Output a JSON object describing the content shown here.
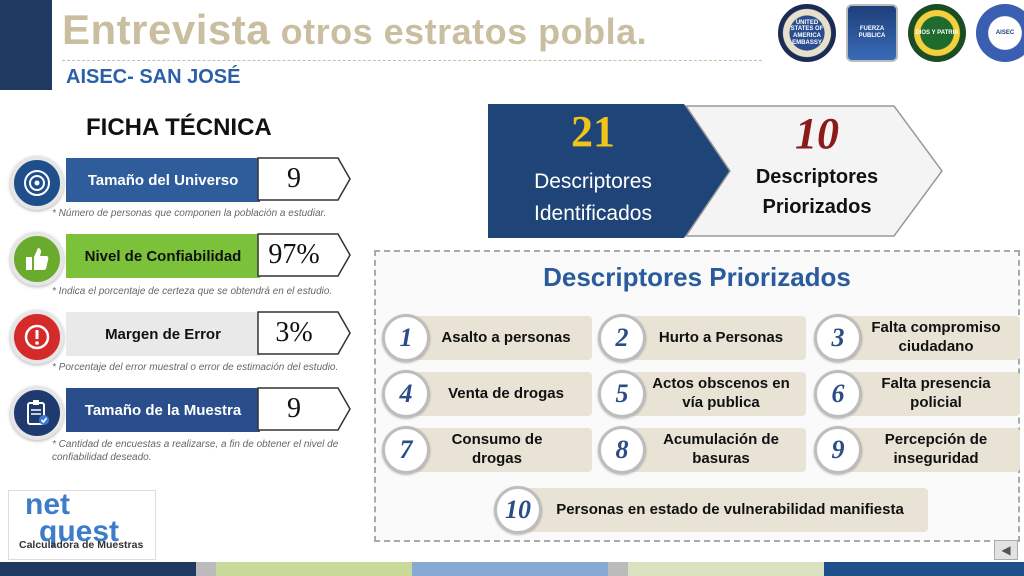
{
  "header": {
    "title_main": "Entrevista",
    "title_rest": " otros estratos pobla.",
    "subtitle": "AISEC- SAN JOSÉ"
  },
  "logos": [
    {
      "name": "us-embassy-seal",
      "text": "UNITED STATES OF AMERICA EMBASSY"
    },
    {
      "name": "fuerza-publica-shield",
      "text": "FUERZA PUBLICA"
    },
    {
      "name": "national-police-seal",
      "text": "DIOS Y PATRIA"
    },
    {
      "name": "aisec-seal",
      "text": "AISEC"
    }
  ],
  "ficha": {
    "title": "FICHA TÉCNICA",
    "params": [
      {
        "label": "Tamaño del Universo",
        "value": "9",
        "note": "* Número de personas que componen la población a estudiar.",
        "icon": "target-icon",
        "circle_color": "#1f4f8a",
        "label_bg": "#2f5d9c",
        "label_color": "#ffffff"
      },
      {
        "label": "Nivel de Confiabilidad",
        "value": "97%",
        "note": "* Indica el porcentaje de certeza que se obtendrá en el estudio.",
        "icon": "thumbs-up-icon",
        "circle_color": "#6aab2e",
        "label_bg": "#7cc13a",
        "label_color": "#111111"
      },
      {
        "label": "Margen de Error",
        "value": "3%",
        "note": "* Porcentaje del error muestral o error de estimación del estudio.",
        "icon": "alert-icon",
        "circle_color": "#d42a2a",
        "label_bg": "#e9e9e9",
        "label_color": "#111111"
      },
      {
        "label": "Tamaño de la Muestra",
        "value": "9",
        "note": "* Cantidad de encuestas a realizarse, a fin de obtener el nivel de confiabilidad deseado.",
        "icon": "clipboard-check-icon",
        "circle_color": "#1f3a6e",
        "label_bg": "#2a4e8c",
        "label_color": "#ffffff"
      }
    ]
  },
  "netquest": {
    "logo_line1": "net",
    "logo_line2": "quest",
    "caption": "Calculadora de Muestras"
  },
  "counts": {
    "identified": {
      "number": "21",
      "label_line1": "Descriptores",
      "label_line2": "Identificados"
    },
    "prioritized": {
      "number": "10",
      "label_line1": "Descriptores",
      "label_line2": "Priorizados"
    }
  },
  "prioritized": {
    "title": "Descriptores Priorizados",
    "items": [
      {
        "num": "1",
        "label": "Asalto a personas"
      },
      {
        "num": "2",
        "label": "Hurto a Personas"
      },
      {
        "num": "3",
        "label": "Falta compromiso ciudadano"
      },
      {
        "num": "4",
        "label": "Venta de drogas"
      },
      {
        "num": "5",
        "label": "Actos obscenos en vía publica"
      },
      {
        "num": "6",
        "label": "Falta presencia policial"
      },
      {
        "num": "7",
        "label": "Consumo de drogas"
      },
      {
        "num": "8",
        "label": "Acumulación de basuras"
      },
      {
        "num": "9",
        "label": "Percepción de inseguridad"
      },
      {
        "num": "10",
        "label": "Personas en estado de vulnerabilidad manifiesta"
      }
    ]
  },
  "colors": {
    "title": "#c9bfa0",
    "subtitle": "#2c5fa8",
    "dark_blue": "#1f3a60",
    "gold": "#f0c419",
    "dark_red": "#8b1a1a"
  }
}
